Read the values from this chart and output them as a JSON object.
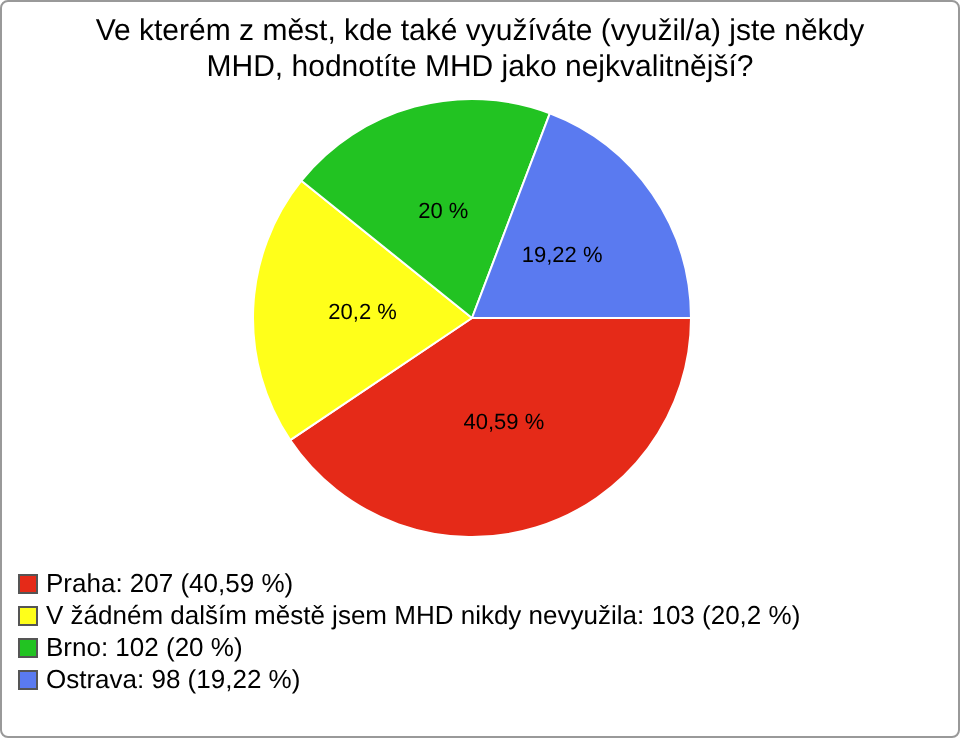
{
  "chart_data": {
    "type": "pie",
    "title": "Ve kterém z měst, kde také využíváte (využil/a) jste někdy MHD, hodnotíte MHD jako nejkvalitnější?",
    "categories": [
      "Praha: 207 (40,59 %)",
      "V žádném dalším městě jsem MHD nikdy nevyužila: 103 (20,2 %)",
      "Brno: 102 (20 %)",
      "Ostrava: 98 (19,22 %)"
    ],
    "values": [
      40.59,
      20.2,
      20,
      19.22
    ],
    "value_labels": [
      "40,59 %",
      "20,2 %",
      "20 %",
      "19,22 %"
    ],
    "colors": [
      "#e52a18",
      "#ffff1a",
      "#22c322",
      "#5a7af0"
    ],
    "legend": "bottom"
  }
}
